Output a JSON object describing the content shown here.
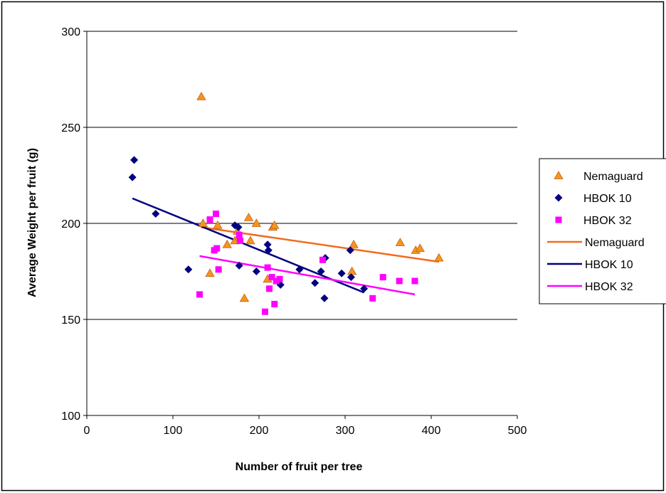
{
  "chart_data": {
    "type": "scatter",
    "title": "",
    "xlabel": "Number of fruit per tree",
    "ylabel": "Average Weight per fruit (g)",
    "xlim": [
      0,
      500
    ],
    "ylim": [
      100,
      300
    ],
    "xticks": [
      "0",
      "100",
      "200",
      "300",
      "400",
      "500"
    ],
    "yticks": [
      "100",
      "150",
      "200",
      "250",
      "300"
    ],
    "grid": "horizontal major gridlines",
    "legend_position": "right",
    "series": [
      {
        "name": "Nemaguard",
        "kind": "scatter",
        "marker": "triangle",
        "color": "#F7941D",
        "x": [
          133,
          135,
          143,
          152,
          163,
          172,
          175,
          177,
          183,
          188,
          190,
          197,
          210,
          216,
          218,
          308,
          310,
          364,
          382,
          387,
          409
        ],
        "y": [
          266,
          200,
          174,
          199,
          189,
          191,
          196,
          193,
          161,
          203,
          191,
          200,
          171,
          198,
          199,
          175,
          189,
          190,
          186,
          187,
          182
        ]
      },
      {
        "name": "HBOK 10",
        "kind": "scatter",
        "marker": "diamond",
        "color": "#000080",
        "x": [
          53,
          55,
          80,
          118,
          172,
          176,
          177,
          197,
          210,
          211,
          225,
          247,
          265,
          272,
          276,
          277,
          296,
          306,
          307,
          322
        ],
        "y": [
          224,
          233,
          205,
          176,
          199,
          198,
          178,
          175,
          189,
          186,
          168,
          176,
          169,
          175,
          161,
          182,
          174,
          186,
          172,
          166
        ]
      },
      {
        "name": "HBOK 32",
        "kind": "scatter",
        "marker": "square",
        "color": "#FF00FF",
        "x": [
          131,
          143,
          148,
          150,
          151,
          153,
          177,
          178,
          207,
          210,
          212,
          215,
          218,
          220,
          224,
          274,
          332,
          344,
          363,
          381
        ],
        "y": [
          163,
          202,
          186,
          205,
          187,
          176,
          194,
          191,
          154,
          177,
          166,
          172,
          158,
          170,
          171,
          181,
          161,
          172,
          170,
          170
        ]
      },
      {
        "name": "Nemaguard",
        "kind": "trendline",
        "color": "#F26B1D",
        "x": [
          133,
          409
        ],
        "y": [
          198,
          180
        ]
      },
      {
        "name": "HBOK 10",
        "kind": "trendline",
        "color": "#000080",
        "x": [
          53,
          322
        ],
        "y": [
          213,
          164
        ]
      },
      {
        "name": "HBOK 32",
        "kind": "trendline",
        "color": "#FF00FF",
        "x": [
          131,
          381
        ],
        "y": [
          183,
          163
        ]
      }
    ]
  }
}
